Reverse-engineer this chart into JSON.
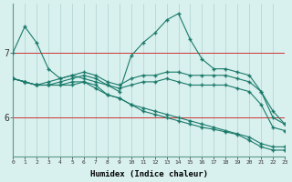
{
  "xlabel": "Humidex (Indice chaleur)",
  "x": [
    0,
    1,
    2,
    3,
    4,
    5,
    6,
    7,
    8,
    9,
    10,
    11,
    12,
    13,
    14,
    15,
    16,
    17,
    18,
    19,
    20,
    21,
    22,
    23
  ],
  "series_top": [
    7.0,
    7.4,
    7.15,
    6.75,
    6.6,
    6.65,
    6.6,
    6.55,
    6.5,
    6.4,
    6.95,
    7.15,
    7.3,
    7.5,
    7.6,
    7.2,
    6.9,
    6.75,
    6.75,
    6.7,
    6.65,
    6.4,
    6.1,
    5.9
  ],
  "series_mid1": [
    6.6,
    6.55,
    6.5,
    6.55,
    6.6,
    6.65,
    6.7,
    6.65,
    6.55,
    6.5,
    6.6,
    6.65,
    6.65,
    6.7,
    6.7,
    6.65,
    6.65,
    6.65,
    6.65,
    6.6,
    6.55,
    6.4,
    6.0,
    5.9
  ],
  "series_mid2": [
    6.6,
    6.55,
    6.5,
    6.5,
    6.55,
    6.6,
    6.65,
    6.6,
    6.5,
    6.45,
    6.5,
    6.55,
    6.55,
    6.6,
    6.55,
    6.5,
    6.5,
    6.5,
    6.5,
    6.45,
    6.4,
    6.2,
    5.85,
    5.8
  ],
  "series_bot1": [
    6.6,
    6.55,
    6.5,
    6.5,
    6.5,
    6.55,
    6.55,
    6.5,
    6.35,
    6.3,
    6.2,
    6.15,
    6.1,
    6.05,
    6.0,
    5.95,
    5.9,
    5.85,
    5.8,
    5.75,
    5.7,
    5.6,
    5.55,
    5.55
  ],
  "series_bot2": [
    6.6,
    6.55,
    6.5,
    6.5,
    6.5,
    6.5,
    6.55,
    6.45,
    6.35,
    6.3,
    6.2,
    6.1,
    6.05,
    6.0,
    5.95,
    5.9,
    5.85,
    5.82,
    5.78,
    5.74,
    5.65,
    5.55,
    5.5,
    5.5
  ],
  "line_color": "#1a7a6a",
  "bg_color": "#d8f0ee",
  "grid_color": "#b5d8d5",
  "red_line_color": "#cc3333",
  "ylim": [
    5.4,
    7.75
  ],
  "yticks": [
    6,
    7
  ],
  "xlim": [
    0,
    23
  ]
}
